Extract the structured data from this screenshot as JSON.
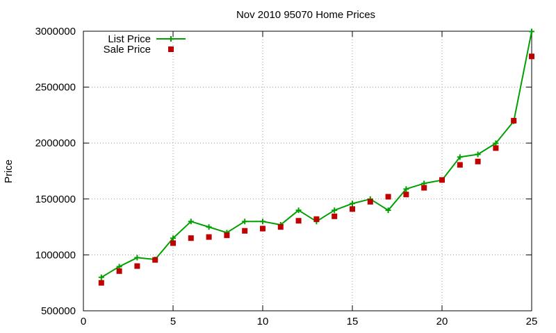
{
  "chart_data": {
    "type": "line",
    "title": "Nov 2010 95070 Home Prices",
    "xlabel": "",
    "ylabel": "Price",
    "xlim": [
      0,
      25
    ],
    "ylim": [
      500000,
      3000000
    ],
    "x_ticks": [
      0,
      5,
      10,
      15,
      20,
      25
    ],
    "y_ticks": [
      500000,
      1000000,
      1500000,
      2000000,
      2500000,
      3000000
    ],
    "grid": true,
    "legend_position": "top-left",
    "x": [
      1,
      2,
      3,
      4,
      5,
      6,
      7,
      8,
      9,
      10,
      11,
      12,
      13,
      14,
      15,
      16,
      17,
      18,
      19,
      20,
      21,
      22,
      23,
      24,
      25
    ],
    "series": [
      {
        "name": "List Price",
        "style": "line-with-plus-markers",
        "color": "#00a000",
        "values": [
          799000,
          895000,
          975000,
          959000,
          1149000,
          1299000,
          1249000,
          1199000,
          1299000,
          1299000,
          1269000,
          1399000,
          1299000,
          1399000,
          1459000,
          1499000,
          1399000,
          1589000,
          1639000,
          1669000,
          1875000,
          1899000,
          1998000,
          2195000,
          2998000
        ]
      },
      {
        "name": "Sale Price",
        "style": "square-markers",
        "color": "#c00000",
        "values": [
          750000,
          855000,
          900000,
          955000,
          1105000,
          1150000,
          1160000,
          1175000,
          1215000,
          1235000,
          1250000,
          1305000,
          1320000,
          1345000,
          1410000,
          1475000,
          1520000,
          1540000,
          1600000,
          1670000,
          1805000,
          1835000,
          1955000,
          2200000,
          2775000
        ]
      }
    ]
  }
}
